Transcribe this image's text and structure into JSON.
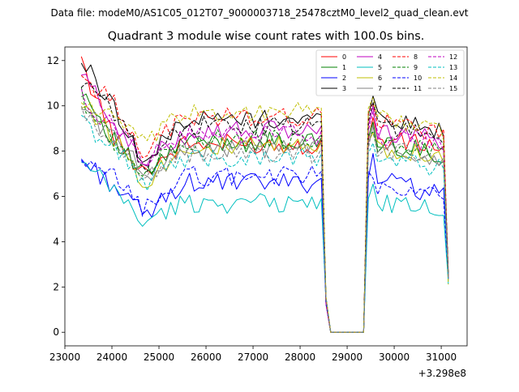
{
  "suptitle": "Data file: modeM0/AS1C05_012T07_9000003718_25478cztM0_level2_quad_clean.evt",
  "chart_data": {
    "type": "line",
    "title": "Quadrant 3 module wise count rates with 100.0s bins.",
    "xlabel": "",
    "ylabel": "",
    "x_offset_label": "+3.298e8",
    "x_start": 23350,
    "x_step": 100,
    "xlim": [
      23000,
      31550
    ],
    "ylim": [
      -0.6,
      12.6
    ],
    "xticks": [
      23000,
      24000,
      25000,
      26000,
      27000,
      28000,
      29000,
      30000,
      31000
    ],
    "xtick_labels": [
      "23000",
      "24000",
      "25000",
      "26000",
      "27000",
      "28000",
      "29000",
      "30000",
      "31000"
    ],
    "yticks": [
      0,
      2,
      4,
      6,
      8,
      10,
      12
    ],
    "ytick_labels": [
      "0",
      "2",
      "4",
      "6",
      "8",
      "10",
      "12"
    ],
    "grid": false,
    "legend_location": "top-right",
    "legend_columns": 4,
    "series": [
      {
        "name": "0",
        "color": "#ff0000",
        "dash": "solid"
      },
      {
        "name": "1",
        "color": "#008000",
        "dash": "solid"
      },
      {
        "name": "2",
        "color": "#0000ff",
        "dash": "solid"
      },
      {
        "name": "3",
        "color": "#000000",
        "dash": "solid"
      },
      {
        "name": "4",
        "color": "#bf00bf",
        "dash": "solid"
      },
      {
        "name": "5",
        "color": "#00bfbf",
        "dash": "solid"
      },
      {
        "name": "6",
        "color": "#bfbf00",
        "dash": "solid"
      },
      {
        "name": "7",
        "color": "#808080",
        "dash": "solid"
      },
      {
        "name": "8",
        "color": "#ff0000",
        "dash": "dashed"
      },
      {
        "name": "9",
        "color": "#008000",
        "dash": "dashed"
      },
      {
        "name": "10",
        "color": "#0000ff",
        "dash": "dashed"
      },
      {
        "name": "11",
        "color": "#000000",
        "dash": "dashed"
      },
      {
        "name": "12",
        "color": "#bf00bf",
        "dash": "dashed"
      },
      {
        "name": "13",
        "color": "#00bfbf",
        "dash": "dashed"
      },
      {
        "name": "14",
        "color": "#bfbf00",
        "dash": "dashed"
      },
      {
        "name": "15",
        "color": "#808080",
        "dash": "dashed"
      }
    ],
    "segment_levels": {
      "0": [
        11.8,
        8.4,
        7.1,
        8.3,
        8.5,
        8.2
      ],
      "1": [
        10.8,
        8.3,
        6.9,
        8.4,
        8.4,
        7.8
      ],
      "2": [
        7.6,
        6.4,
        5.1,
        6.6,
        6.9,
        5.9
      ],
      "3": [
        12.0,
        9.8,
        7.4,
        9.4,
        9.6,
        8.8
      ],
      "4": [
        11.4,
        9.2,
        7.3,
        8.9,
        8.9,
        8.4
      ],
      "5": [
        7.4,
        6.2,
        4.8,
        5.7,
        5.7,
        5.4
      ],
      "6": [
        10.2,
        8.5,
        6.6,
        8.2,
        8.2,
        7.8
      ],
      "7": [
        10.0,
        8.5,
        6.9,
        8.1,
        8.1,
        7.6
      ],
      "8": [
        11.3,
        10.0,
        7.9,
        9.5,
        9.3,
        8.8
      ],
      "9": [
        10.4,
        8.2,
        7.1,
        8.5,
        8.3,
        8.0
      ],
      "10": [
        7.3,
        6.8,
        5.4,
        6.9,
        6.2,
        6.1
      ],
      "11": [
        11.1,
        9.6,
        7.4,
        9.1,
        9.2,
        8.6
      ],
      "12": [
        10.3,
        9.0,
        7.6,
        8.7,
        8.7,
        8.2
      ],
      "13": [
        9.3,
        8.0,
        6.6,
        7.7,
        7.6,
        7.2
      ],
      "14": [
        10.2,
        9.4,
        8.2,
        9.7,
        9.6,
        8.8
      ],
      "15": [
        9.6,
        8.2,
        6.9,
        7.9,
        8.1,
        7.6
      ]
    },
    "segment_bounds_x": [
      23350,
      24100,
      24700,
      25500,
      28350,
      29550,
      31150
    ],
    "gap_x": [
      28650,
      29350
    ],
    "drop_end_x": [
      28450,
      28550,
      31150
    ]
  }
}
